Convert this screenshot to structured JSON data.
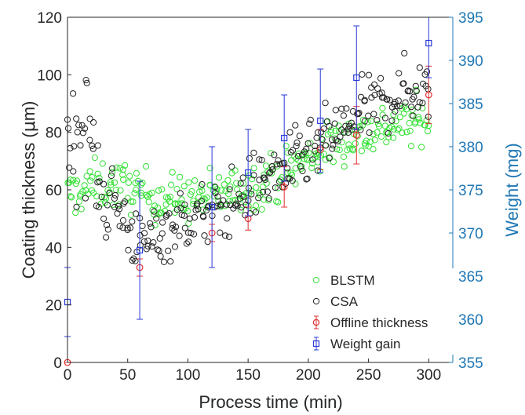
{
  "chart_data": {
    "type": "scatter",
    "xlabel": "Process time (min)",
    "ylabel_parts": [
      "Coating thickness (",
      "μ",
      "m)"
    ],
    "ylabel": "Coating thickness (μm)",
    "y2label": "Weight (mg)",
    "xlim": [
      0,
      320
    ],
    "ylim": [
      0,
      120
    ],
    "y2lim": [
      355,
      395
    ],
    "xticks": [
      "0",
      "50",
      "100",
      "150",
      "200",
      "250",
      "300"
    ],
    "xtick_values": [
      0,
      50,
      100,
      150,
      200,
      250,
      300
    ],
    "yticks": [
      "0",
      "20",
      "40",
      "60",
      "80",
      "100",
      "120"
    ],
    "ytick_values": [
      0,
      20,
      40,
      60,
      80,
      100,
      120
    ],
    "y2ticks": [
      "355",
      "360",
      "365",
      "370",
      "375",
      "380",
      "385",
      "390",
      "395"
    ],
    "y2tick_values": [
      355,
      360,
      365,
      370,
      375,
      380,
      385,
      390,
      395
    ],
    "grid": false,
    "legend_position": "bottom-right",
    "colors": {
      "blstm": "#33e033",
      "csa": "#222222",
      "offline": "#e03030",
      "weight": "#2a3ad8",
      "right_axis": "#1f77b4"
    },
    "series": [
      {
        "name": "BLSTM",
        "marker": "circle",
        "trend": {
          "x": [
            0,
            25,
            50,
            75,
            100,
            125,
            150,
            175,
            200,
            225,
            250,
            275,
            300
          ],
          "y": [
            58,
            62,
            61,
            57,
            57,
            58,
            61,
            65,
            71,
            77,
            80,
            83,
            84
          ]
        },
        "noise": 6,
        "n_points": 300
      },
      {
        "name": "CSA",
        "marker": "circle",
        "trend": {
          "x": [
            0,
            15,
            30,
            50,
            60,
            75,
            100,
            125,
            150,
            175,
            200,
            225,
            250,
            275,
            300
          ],
          "y": [
            75,
            82,
            60,
            48,
            40,
            45,
            50,
            52,
            60,
            66,
            72,
            80,
            88,
            93,
            96
          ]
        },
        "noise": 8,
        "n_points": 300
      },
      {
        "name": "Offline thickness",
        "marker": "circle",
        "axis": "left",
        "x": [
          0,
          60,
          120,
          150,
          180,
          210,
          240,
          300
        ],
        "y": [
          0,
          33,
          45,
          50,
          61,
          74,
          79,
          93
        ],
        "err": [
          0,
          3,
          3,
          4,
          7,
          7,
          10,
          10
        ]
      },
      {
        "name": "Weight gain",
        "marker": "square",
        "axis": "right",
        "x": [
          0,
          60,
          120,
          150,
          180,
          210,
          240,
          300
        ],
        "y": [
          362,
          368,
          373,
          377,
          381,
          383,
          388,
          392
        ],
        "err": [
          4,
          8,
          7,
          5,
          5,
          6,
          6,
          4
        ]
      }
    ]
  }
}
